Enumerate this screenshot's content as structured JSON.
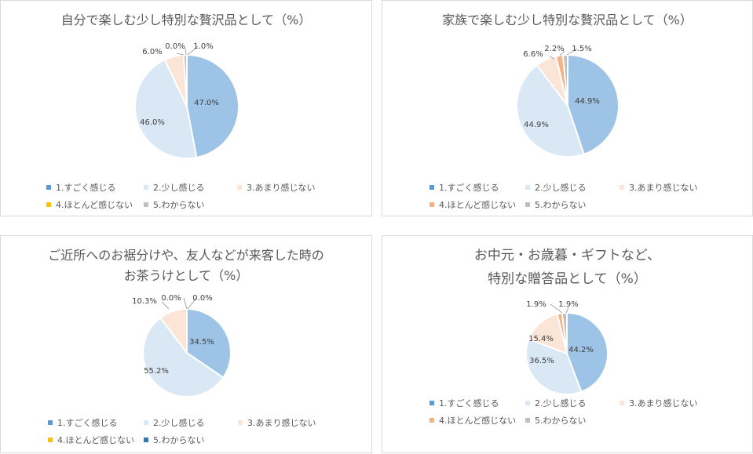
{
  "legend_labels": [
    "1.すごく感じる",
    "2.少し感じる",
    "3.あまり感じない",
    "4.ほとんど感じない",
    "5.わからない"
  ],
  "colors": [
    "#9dc3e6",
    "#dae7f5",
    "#fbe5d6",
    "#f4b183",
    "#bfbfbf"
  ],
  "chart_data": [
    {
      "type": "pie",
      "title": "自分で楽しむ少し特別な贅沢品として（%）",
      "categories": [
        "1.すごく感じる",
        "2.少し感じる",
        "3.あまり感じない",
        "4.ほとんど感じない",
        "5.わからない"
      ],
      "values": [
        47.0,
        46.0,
        6.0,
        0.0,
        1.0
      ],
      "data_labels": [
        "47.0%",
        "46.0%",
        "6.0%",
        "0.0%",
        "1.0%"
      ],
      "legend_colors": [
        "#5b9bd5",
        "#dae7f5",
        "#fbe5d6",
        "#ffc000",
        "#bfbfbf"
      ]
    },
    {
      "type": "pie",
      "title": "家族で楽しむ少し特別な贅沢品として（%）",
      "categories": [
        "1.すごく感じる",
        "2.少し感じる",
        "3.あまり感じない",
        "4.ほとんど感じない",
        "5.わからない"
      ],
      "values": [
        44.9,
        44.9,
        6.6,
        2.2,
        1.5
      ],
      "data_labels": [
        "44.9%",
        "44.9%",
        "6.6%",
        "2.2%",
        "1.5%"
      ],
      "legend_colors": [
        "#5b9bd5",
        "#dae7f5",
        "#fbe5d6",
        "#f4b183",
        "#bfbfbf"
      ]
    },
    {
      "type": "pie",
      "title": "ご近所へのお裾分けや、友人などが来客した時の\nお茶うけとして（%）",
      "categories": [
        "1.すごく感じる",
        "2.少し感じる",
        "3.あまり感じない",
        "4.ほとんど感じない",
        "5.わからない"
      ],
      "values": [
        34.5,
        55.2,
        10.3,
        0.0,
        0.0
      ],
      "data_labels": [
        "34.5%",
        "55.2%",
        "10.3%",
        "0.0%",
        "0.0%"
      ],
      "legend_colors": [
        "#5b9bd5",
        "#dae7f5",
        "#fbe5d6",
        "#ffc000",
        "#2e75b6"
      ]
    },
    {
      "type": "pie",
      "title": "お中元・お歳暮・ギフトなど、\n特別な贈答品として（%）",
      "categories": [
        "1.すごく感じる",
        "2.少し感じる",
        "3.あまり感じない",
        "4.ほとんど感じない",
        "5.わからない"
      ],
      "values": [
        44.2,
        36.5,
        15.4,
        1.9,
        1.9
      ],
      "data_labels": [
        "44.2%",
        "36.5%",
        "15.4%",
        "1.9%",
        "1.9%"
      ],
      "legend_colors": [
        "#5b9bd5",
        "#dae7f5",
        "#fbe5d6",
        "#f4b183",
        "#bfbfbf"
      ]
    }
  ]
}
